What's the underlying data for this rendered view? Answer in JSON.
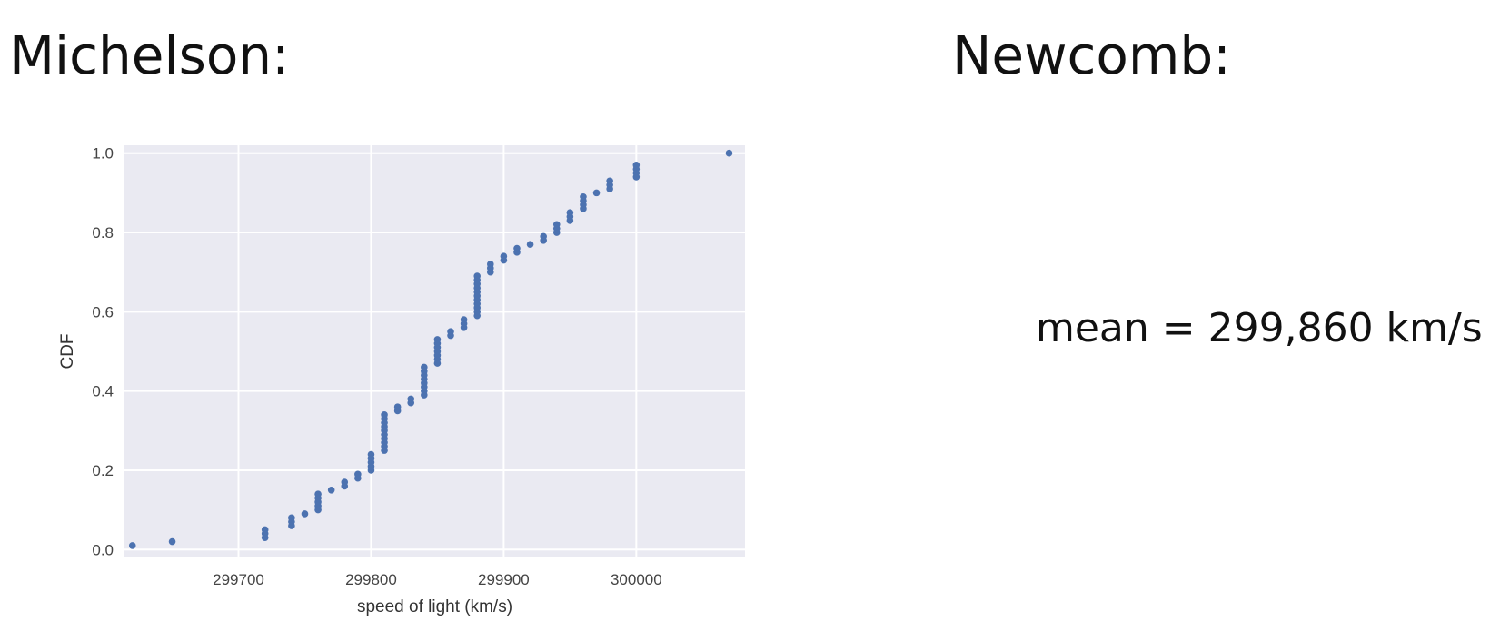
{
  "headings": {
    "left": "Michelson:",
    "right": "Newcomb:"
  },
  "summary": {
    "mean_text": "mean = 299,860 km/s"
  },
  "chart_data": {
    "type": "scatter",
    "title": "",
    "xlabel": "speed of light (km/s)",
    "ylabel": "CDF",
    "xlim": [
      299614,
      300082
    ],
    "ylim": [
      -0.02,
      1.02
    ],
    "x_ticks": [
      299700,
      299800,
      299900,
      300000
    ],
    "x_tick_labels": [
      "299700",
      "299800",
      "299900",
      "300000"
    ],
    "y_ticks": [
      0.0,
      0.2,
      0.4,
      0.6,
      0.8,
      1.0
    ],
    "y_tick_labels": [
      "0.0",
      "0.2",
      "0.4",
      "0.6",
      "0.8",
      "1.0"
    ],
    "grid": true,
    "marker_color": "#4c72b0",
    "background_color": "#eaeaf2",
    "series": [
      {
        "x": [
          299620,
          299650,
          299720,
          299720,
          299720,
          299740,
          299740,
          299740,
          299750,
          299760,
          299760,
          299760,
          299760,
          299760,
          299770,
          299780,
          299780,
          299790,
          299790,
          299800,
          299800,
          299800,
          299800,
          299800,
          299810,
          299810,
          299810,
          299810,
          299810,
          299810,
          299810,
          299810,
          299810,
          299810,
          299820,
          299820,
          299830,
          299830,
          299840,
          299840,
          299840,
          299840,
          299840,
          299840,
          299840,
          299840,
          299850,
          299850,
          299850,
          299850,
          299850,
          299850,
          299850,
          299860,
          299860,
          299870,
          299870,
          299870,
          299880,
          299880,
          299880,
          299880,
          299880,
          299880,
          299880,
          299880,
          299880,
          299880,
          299880,
          299890,
          299890,
          299890,
          299900,
          299900,
          299910,
          299910,
          299920,
          299930,
          299930,
          299940,
          299940,
          299940,
          299950,
          299950,
          299950,
          299960,
          299960,
          299960,
          299960,
          299970,
          299980,
          299980,
          299980,
          300000,
          300000,
          300000,
          300000,
          300070
        ],
        "y": [
          0.01,
          0.02,
          0.03,
          0.04,
          0.05,
          0.06,
          0.07,
          0.08,
          0.09,
          0.1,
          0.11,
          0.12,
          0.13,
          0.14,
          0.15,
          0.16,
          0.17,
          0.18,
          0.19,
          0.2,
          0.21,
          0.22,
          0.23,
          0.24,
          0.25,
          0.26,
          0.27,
          0.28,
          0.29,
          0.3,
          0.31,
          0.32,
          0.33,
          0.34,
          0.35,
          0.36,
          0.37,
          0.38,
          0.39,
          0.4,
          0.41,
          0.42,
          0.43,
          0.44,
          0.45,
          0.46,
          0.47,
          0.48,
          0.49,
          0.5,
          0.51,
          0.52,
          0.53,
          0.54,
          0.55,
          0.56,
          0.57,
          0.58,
          0.59,
          0.6,
          0.61,
          0.62,
          0.63,
          0.64,
          0.65,
          0.66,
          0.67,
          0.68,
          0.69,
          0.7,
          0.71,
          0.72,
          0.73,
          0.74,
          0.75,
          0.76,
          0.77,
          0.78,
          0.79,
          0.8,
          0.81,
          0.82,
          0.83,
          0.84,
          0.85,
          0.86,
          0.87,
          0.88,
          0.89,
          0.9,
          0.91,
          0.92,
          0.93,
          0.94,
          0.95,
          0.96,
          0.97,
          1.0
        ]
      }
    ]
  }
}
